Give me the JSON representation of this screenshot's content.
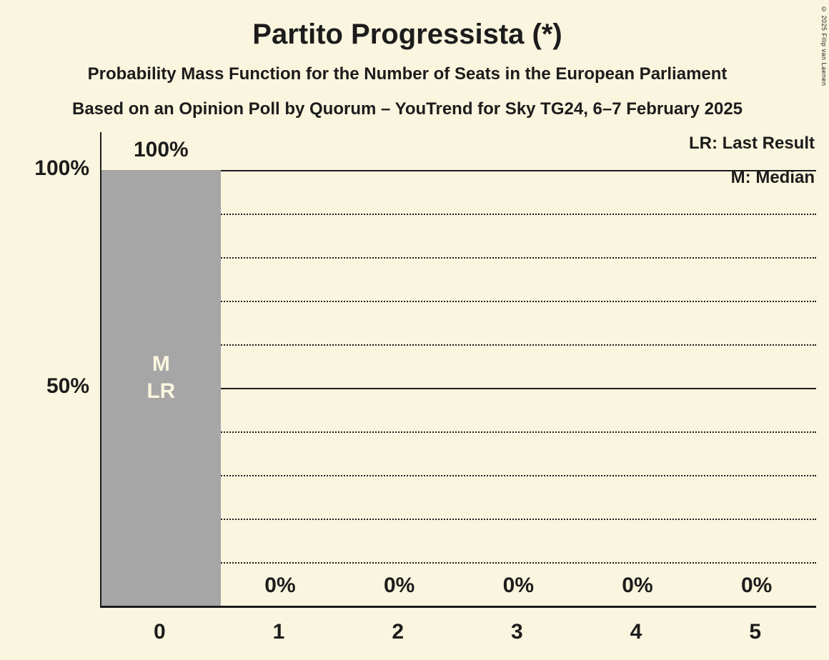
{
  "title": "Partito Progressista (*)",
  "subtitles": [
    "Probability Mass Function for the Number of Seats in the European Parliament",
    "Based on an Opinion Poll by Quorum – YouTrend for Sky TG24, 6–7 February 2025"
  ],
  "legend": {
    "last_result": "LR: Last Result",
    "median": "M: Median"
  },
  "copyright": "© 2025 Filip van Laenen",
  "colors": {
    "background": "#FAF5DE",
    "bar": "#A6A6A6",
    "text": "#1C1C1C",
    "bar_annotation_text": "#FAF5DE"
  },
  "chart_data": {
    "type": "bar",
    "title": "Partito Progressista (*)",
    "categories": [
      "0",
      "1",
      "2",
      "3",
      "4",
      "5"
    ],
    "values": [
      100,
      0,
      0,
      0,
      0,
      0
    ],
    "value_labels": [
      "100%",
      "0%",
      "0%",
      "0%",
      "0%",
      "0%"
    ],
    "ylim": [
      0,
      100
    ],
    "y_ticks": [
      {
        "value": 100,
        "label": "100%"
      },
      {
        "value": 50,
        "label": "50%"
      }
    ],
    "solid_gridlines": [
      100,
      50
    ],
    "dotted_gridlines": [
      90,
      80,
      70,
      60,
      40,
      30,
      20,
      10
    ],
    "annotations": [
      {
        "category_index": 0,
        "lines": [
          "M",
          "LR"
        ]
      }
    ],
    "legend_position": "top-right",
    "grid": true
  }
}
